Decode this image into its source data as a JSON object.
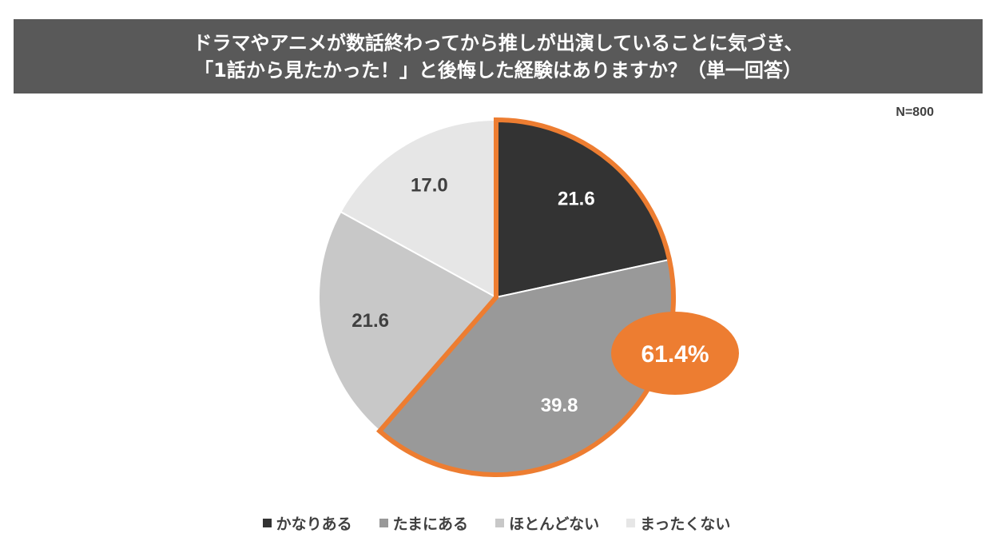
{
  "title": {
    "line1": "ドラマやアニメが数話終わってから推しが出演していることに気づき、",
    "line2": "「1話から見たかった！」と後悔した経験はありますか？（単一回答）"
  },
  "sample_size": "N=800",
  "colors": {
    "banner": "#595959",
    "highlight": "#ED7D31",
    "slice_1": "#333333",
    "slice_2": "#999999",
    "slice_3": "#C8C8C8",
    "slice_4": "#E6E6E6"
  },
  "callout": {
    "label": "61.4%"
  },
  "chart_data": {
    "type": "pie",
    "title": "ドラマやアニメが数話終わってから推しが出演していることに気づき、「1話から見たかった！」と後悔した経験はありますか？（単一回答）",
    "categories": [
      "かなりある",
      "たまにある",
      "ほとんどない",
      "まったくない"
    ],
    "values": [
      21.6,
      39.8,
      21.6,
      17.0
    ],
    "value_labels": [
      "21.6",
      "39.8",
      "21.6",
      "17.0"
    ],
    "label_colors": [
      "#ffffff",
      "#ffffff",
      "#404040",
      "#404040"
    ],
    "highlighted_indices": [
      0,
      1
    ],
    "highlighted_total": "61.4%",
    "start_angle": "12 o'clock",
    "direction": "clockwise",
    "legend_position": "bottom"
  }
}
